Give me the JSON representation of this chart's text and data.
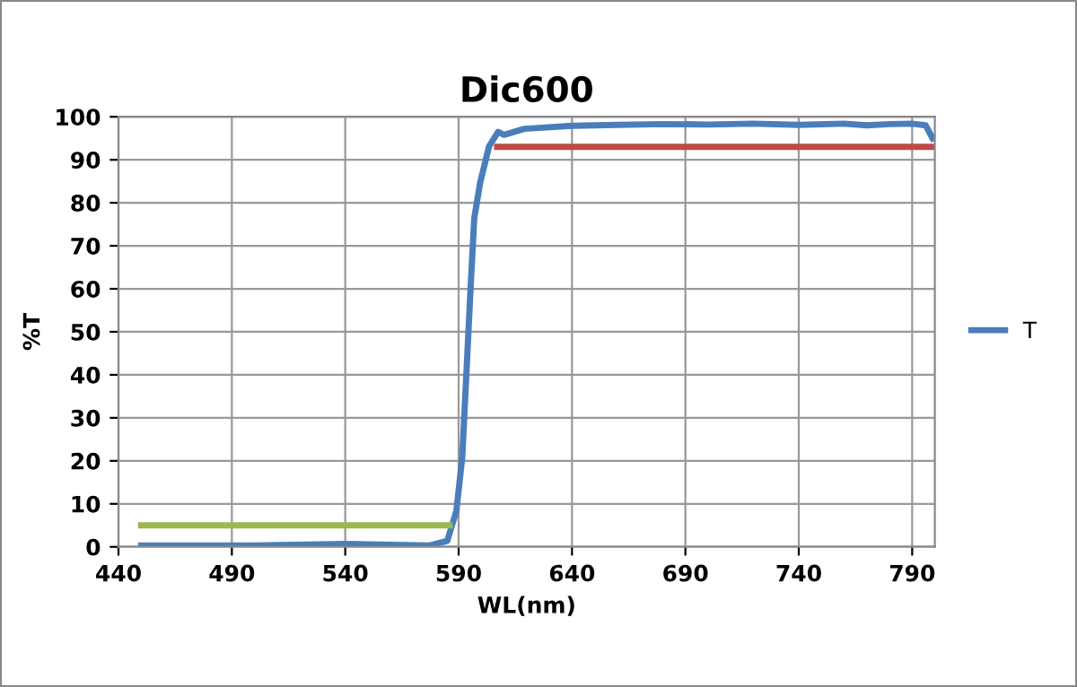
{
  "chart_data": {
    "type": "line",
    "title": "Dic600",
    "xlabel": "WL(nm)",
    "ylabel": "%T",
    "xlim": [
      440,
      800
    ],
    "xticks": [
      440,
      490,
      540,
      590,
      640,
      690,
      740,
      790
    ],
    "ylim": [
      0,
      100
    ],
    "yticks": [
      0,
      10,
      20,
      30,
      40,
      50,
      60,
      70,
      80,
      90,
      100
    ],
    "grid": true,
    "legend": "right",
    "marker": "none",
    "line_style": "solid",
    "series": [
      {
        "name": "T",
        "color": "#4a7ebb",
        "x": [
          450,
          500,
          540,
          555,
          577,
          585,
          589,
          591.6,
          592.9,
          594.2,
          595.5,
          596.9,
          599.5,
          603.4,
          607.4,
          610,
          619,
          640,
          660,
          680,
          700,
          720,
          740,
          760,
          770,
          780,
          790,
          796,
          799
        ],
        "values": [
          0.3,
          0.3,
          0.7,
          0.5,
          0.3,
          1.4,
          8.3,
          20.8,
          34.7,
          48.6,
          62.5,
          76.4,
          84.7,
          93.1,
          96.5,
          95.8,
          97.2,
          97.9,
          98.1,
          98.3,
          98.2,
          98.4,
          98.1,
          98.4,
          98.0,
          98.3,
          98.4,
          98.0,
          95
        ]
      },
      {
        "color": "#98b954",
        "x": [
          450,
          586
        ],
        "values": [
          5,
          5
        ]
      },
      {
        "color": "#be4b48",
        "x": [
          607,
          799
        ],
        "values": [
          93,
          93
        ]
      }
    ]
  }
}
